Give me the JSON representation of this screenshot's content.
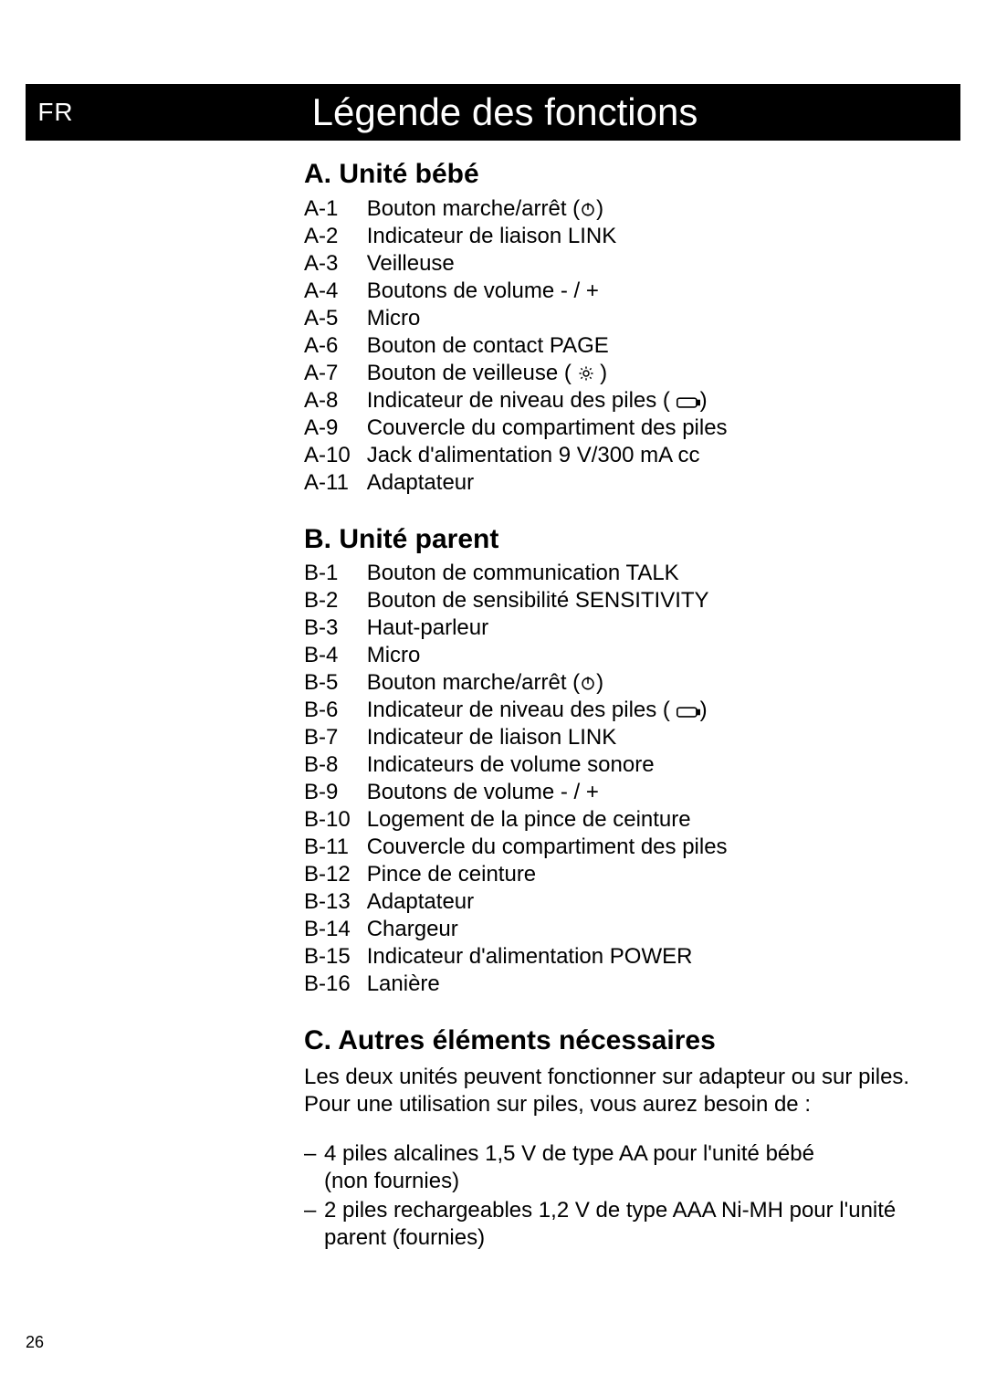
{
  "lang_badge": "FR",
  "page_title": "Légende des fonctions",
  "page_number": "26",
  "sections": {
    "a": {
      "heading": "A. Unité bébé",
      "items": [
        {
          "code": "A-1",
          "label": "Bouton marche/arrêt (",
          "icon": "power",
          "label_after": ")"
        },
        {
          "code": "A-2",
          "label": "Indicateur de liaison LINK"
        },
        {
          "code": "A-3",
          "label": "Veilleuse"
        },
        {
          "code": "A-4",
          "label": "Boutons de volume - / +"
        },
        {
          "code": "A-5",
          "label": "Micro"
        },
        {
          "code": "A-6",
          "label": "Bouton de contact PAGE"
        },
        {
          "code": "A-7",
          "label": "Bouton de veilleuse ( ",
          "icon": "light",
          "label_after": " )"
        },
        {
          "code": "A-8",
          "label": "Indicateur de niveau des piles ( ",
          "icon": "battery",
          "label_after": ")"
        },
        {
          "code": "A-9",
          "label": "Couvercle du compartiment des piles"
        },
        {
          "code": "A-10",
          "label": "Jack d'alimentation 9 V/300 mA cc"
        },
        {
          "code": "A-11",
          "label": "Adaptateur"
        }
      ]
    },
    "b": {
      "heading": "B. Unité parent",
      "items": [
        {
          "code": "B-1",
          "label": "Bouton de communication TALK"
        },
        {
          "code": "B-2",
          "label": "Bouton de sensibilité SENSITIVITY"
        },
        {
          "code": "B-3",
          "label": "Haut-parleur"
        },
        {
          "code": "B-4",
          "label": "Micro"
        },
        {
          "code": "B-5",
          "label": "Bouton marche/arrêt (",
          "icon": "power",
          "label_after": ")"
        },
        {
          "code": "B-6",
          "label": "Indicateur de niveau des piles ( ",
          "icon": "battery",
          "label_after": ")"
        },
        {
          "code": "B-7",
          "label": "Indicateur de liaison LINK"
        },
        {
          "code": "B-8",
          "label": "Indicateurs de volume sonore"
        },
        {
          "code": "B-9",
          "label": "Boutons de volume - / +"
        },
        {
          "code": "B-10",
          "label": "Logement de la pince de ceinture"
        },
        {
          "code": "B-11",
          "label": "Couvercle du compartiment des piles"
        },
        {
          "code": "B-12",
          "label": "Pince de ceinture"
        },
        {
          "code": "B-13",
          "label": "Adaptateur"
        },
        {
          "code": "B-14",
          "label": "Chargeur"
        },
        {
          "code": "B-15",
          "label": "Indicateur d'alimentation POWER"
        },
        {
          "code": "B-16",
          "label": "Lanière"
        }
      ]
    },
    "c": {
      "heading": "C. Autres éléments nécessaires",
      "intro": "Les deux unités peuvent fonctionner sur adapteur ou sur piles. Pour une utilisation sur piles, vous aurez besoin de :",
      "bullets": [
        {
          "line1": "4 piles alcalines 1,5  V de type AA pour l'unité bébé",
          "line2": "(non fournies)"
        },
        {
          "line1": "2 piles rechargeables 1,2 V de type AAA Ni-MH pour l'unité",
          "line2": "parent (fournies)"
        }
      ]
    }
  },
  "icons": {
    "power": {
      "type": "power",
      "stroke": "#000000"
    },
    "light": {
      "type": "light",
      "stroke": "#000000"
    },
    "battery": {
      "type": "battery",
      "stroke": "#000000"
    }
  },
  "styling": {
    "page_bg": "#ffffff",
    "title_bg": "#000000",
    "title_fg": "#ffffff",
    "body_fg": "#000000",
    "title_fontsize": 42,
    "heading_fontsize": 30,
    "body_fontsize": 24,
    "pagenum_fontsize": 18
  }
}
